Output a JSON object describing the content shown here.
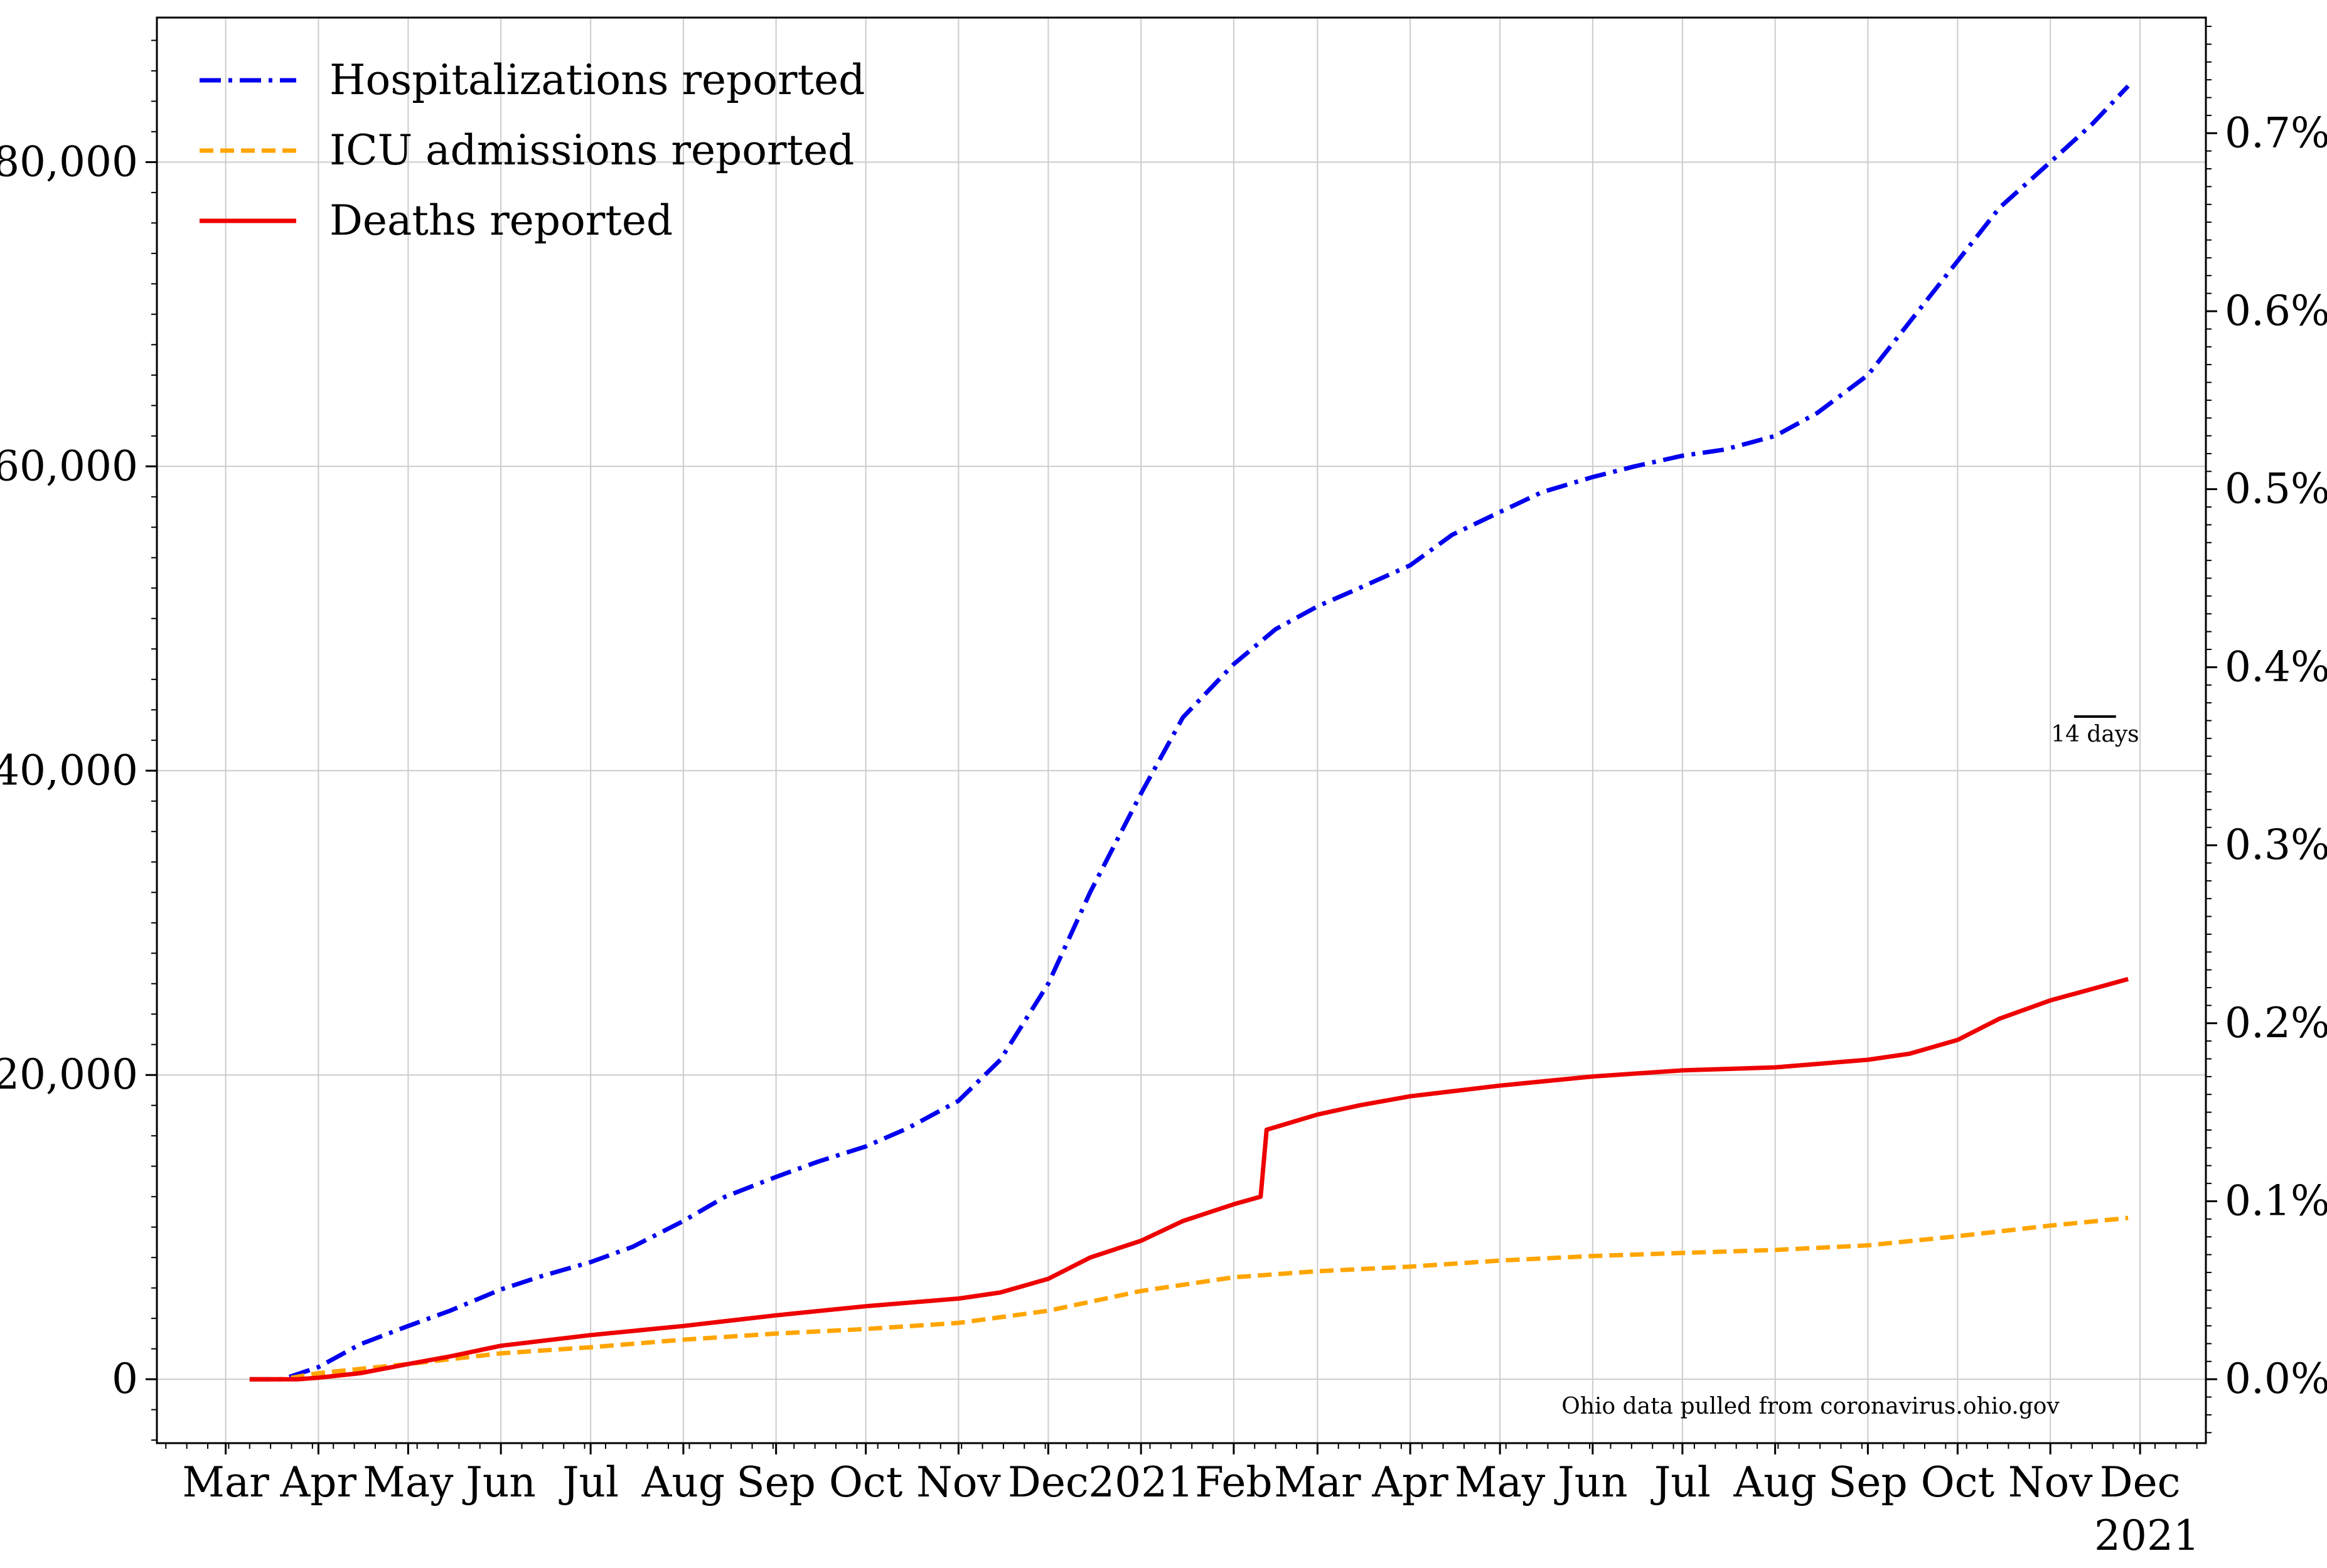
{
  "chart_data": {
    "type": "line",
    "title": "",
    "xlabel": "",
    "ylabel": "",
    "x_tick_labels": [
      "Mar",
      "Apr",
      "May",
      "Jun",
      "Jul",
      "Aug",
      "Sep",
      "Oct",
      "Nov",
      "Dec",
      "2021",
      "Feb",
      "Mar",
      "Apr",
      "May",
      "Jun",
      "Jul",
      "Aug",
      "Sep",
      "Oct",
      "Nov",
      "Dec"
    ],
    "x_tick_dates": [
      "2020-03-01",
      "2020-04-01",
      "2020-05-01",
      "2020-06-01",
      "2020-07-01",
      "2020-08-01",
      "2020-09-01",
      "2020-10-01",
      "2020-11-01",
      "2020-12-01",
      "2021-01-01",
      "2021-02-01",
      "2021-03-01",
      "2021-04-01",
      "2021-05-01",
      "2021-06-01",
      "2021-07-01",
      "2021-08-01",
      "2021-09-01",
      "2021-10-01",
      "2021-11-01",
      "2021-12-01"
    ],
    "x_offset_label": "2021",
    "xlim": [
      "2020-02-07",
      "2021-12-23"
    ],
    "y_ticks": [
      0,
      20000,
      40000,
      60000,
      80000
    ],
    "y_tick_labels": [
      "0",
      "20,000",
      "40,000",
      "60,000",
      "80,000"
    ],
    "ylim": [
      -4200,
      89500
    ],
    "y2_ticks": [
      0.0,
      0.1,
      0.2,
      0.3,
      0.4,
      0.5,
      0.6,
      0.7
    ],
    "y2_tick_labels": [
      "0.0%",
      "0.1%",
      "0.2%",
      "0.3%",
      "0.4%",
      "0.5%",
      "0.6%",
      "0.7%"
    ],
    "y2_unit_value": 11700,
    "grid": true,
    "legend_position": "top-left",
    "annotation": "Ohio data pulled from coronavirus.ohio.gov",
    "scale_bar_label": "14 days",
    "series": [
      {
        "name": "Hospitalizations reported",
        "color": "#0000ee",
        "dash": "dashdot",
        "points": [
          [
            "2020-03-09",
            0
          ],
          [
            "2020-03-20",
            0
          ],
          [
            "2020-04-01",
            800
          ],
          [
            "2020-04-15",
            2300
          ],
          [
            "2020-05-01",
            3500
          ],
          [
            "2020-05-15",
            4500
          ],
          [
            "2020-06-01",
            5900
          ],
          [
            "2020-06-15",
            6800
          ],
          [
            "2020-07-01",
            7700
          ],
          [
            "2020-07-15",
            8700
          ],
          [
            "2020-08-01",
            10400
          ],
          [
            "2020-08-15",
            12000
          ],
          [
            "2020-09-01",
            13300
          ],
          [
            "2020-09-15",
            14300
          ],
          [
            "2020-10-01",
            15300
          ],
          [
            "2020-10-15",
            16500
          ],
          [
            "2020-11-01",
            18300
          ],
          [
            "2020-11-15",
            21000
          ],
          [
            "2020-12-01",
            26000
          ],
          [
            "2020-12-15",
            32000
          ],
          [
            "2021-01-01",
            38500
          ],
          [
            "2021-01-15",
            43500
          ],
          [
            "2021-02-01",
            47000
          ],
          [
            "2021-02-15",
            49300
          ],
          [
            "2021-03-01",
            50800
          ],
          [
            "2021-03-15",
            52000
          ],
          [
            "2021-04-01",
            53500
          ],
          [
            "2021-04-15",
            55500
          ],
          [
            "2021-05-01",
            57000
          ],
          [
            "2021-05-15",
            58300
          ],
          [
            "2021-06-01",
            59300
          ],
          [
            "2021-06-15",
            60000
          ],
          [
            "2021-07-01",
            60700
          ],
          [
            "2021-07-15",
            61100
          ],
          [
            "2021-08-01",
            62000
          ],
          [
            "2021-08-15",
            63500
          ],
          [
            "2021-09-01",
            66000
          ],
          [
            "2021-09-15",
            69500
          ],
          [
            "2021-10-01",
            73500
          ],
          [
            "2021-10-15",
            77000
          ],
          [
            "2021-11-01",
            80000
          ],
          [
            "2021-11-15",
            82500
          ],
          [
            "2021-11-27",
            85000
          ]
        ]
      },
      {
        "name": "ICU admissions reported",
        "color": "#ffa500",
        "dash": "dashed",
        "points": [
          [
            "2020-03-09",
            0
          ],
          [
            "2020-03-20",
            0
          ],
          [
            "2020-04-01",
            400
          ],
          [
            "2020-05-01",
            1000
          ],
          [
            "2020-06-01",
            1700
          ],
          [
            "2020-07-01",
            2100
          ],
          [
            "2020-08-01",
            2600
          ],
          [
            "2020-09-01",
            3000
          ],
          [
            "2020-10-01",
            3300
          ],
          [
            "2020-11-01",
            3700
          ],
          [
            "2020-12-01",
            4500
          ],
          [
            "2021-01-01",
            5800
          ],
          [
            "2021-02-01",
            6700
          ],
          [
            "2021-03-01",
            7100
          ],
          [
            "2021-04-01",
            7400
          ],
          [
            "2021-05-01",
            7800
          ],
          [
            "2021-06-01",
            8100
          ],
          [
            "2021-07-01",
            8300
          ],
          [
            "2021-08-01",
            8500
          ],
          [
            "2021-09-01",
            8800
          ],
          [
            "2021-10-01",
            9400
          ],
          [
            "2021-11-01",
            10100
          ],
          [
            "2021-11-27",
            10600
          ]
        ]
      },
      {
        "name": "Deaths reported",
        "color": "#ee0000",
        "dash": "solid",
        "points": [
          [
            "2020-03-09",
            0
          ],
          [
            "2020-03-25",
            0
          ],
          [
            "2020-04-01",
            100
          ],
          [
            "2020-04-15",
            400
          ],
          [
            "2020-05-01",
            1000
          ],
          [
            "2020-05-15",
            1500
          ],
          [
            "2020-06-01",
            2200
          ],
          [
            "2020-07-01",
            2900
          ],
          [
            "2020-08-01",
            3500
          ],
          [
            "2020-09-01",
            4200
          ],
          [
            "2020-10-01",
            4800
          ],
          [
            "2020-11-01",
            5300
          ],
          [
            "2020-11-15",
            5700
          ],
          [
            "2020-12-01",
            6600
          ],
          [
            "2020-12-15",
            8000
          ],
          [
            "2021-01-01",
            9100
          ],
          [
            "2021-01-15",
            10400
          ],
          [
            "2021-02-01",
            11500
          ],
          [
            "2021-02-10",
            12000
          ],
          [
            "2021-02-12",
            16400
          ],
          [
            "2021-03-01",
            17400
          ],
          [
            "2021-03-15",
            18000
          ],
          [
            "2021-04-01",
            18600
          ],
          [
            "2021-05-01",
            19300
          ],
          [
            "2021-06-01",
            19900
          ],
          [
            "2021-07-01",
            20300
          ],
          [
            "2021-08-01",
            20500
          ],
          [
            "2021-09-01",
            21000
          ],
          [
            "2021-09-15",
            21400
          ],
          [
            "2021-10-01",
            22300
          ],
          [
            "2021-10-15",
            23700
          ],
          [
            "2021-11-01",
            24900
          ],
          [
            "2021-11-27",
            26300
          ]
        ]
      }
    ]
  }
}
